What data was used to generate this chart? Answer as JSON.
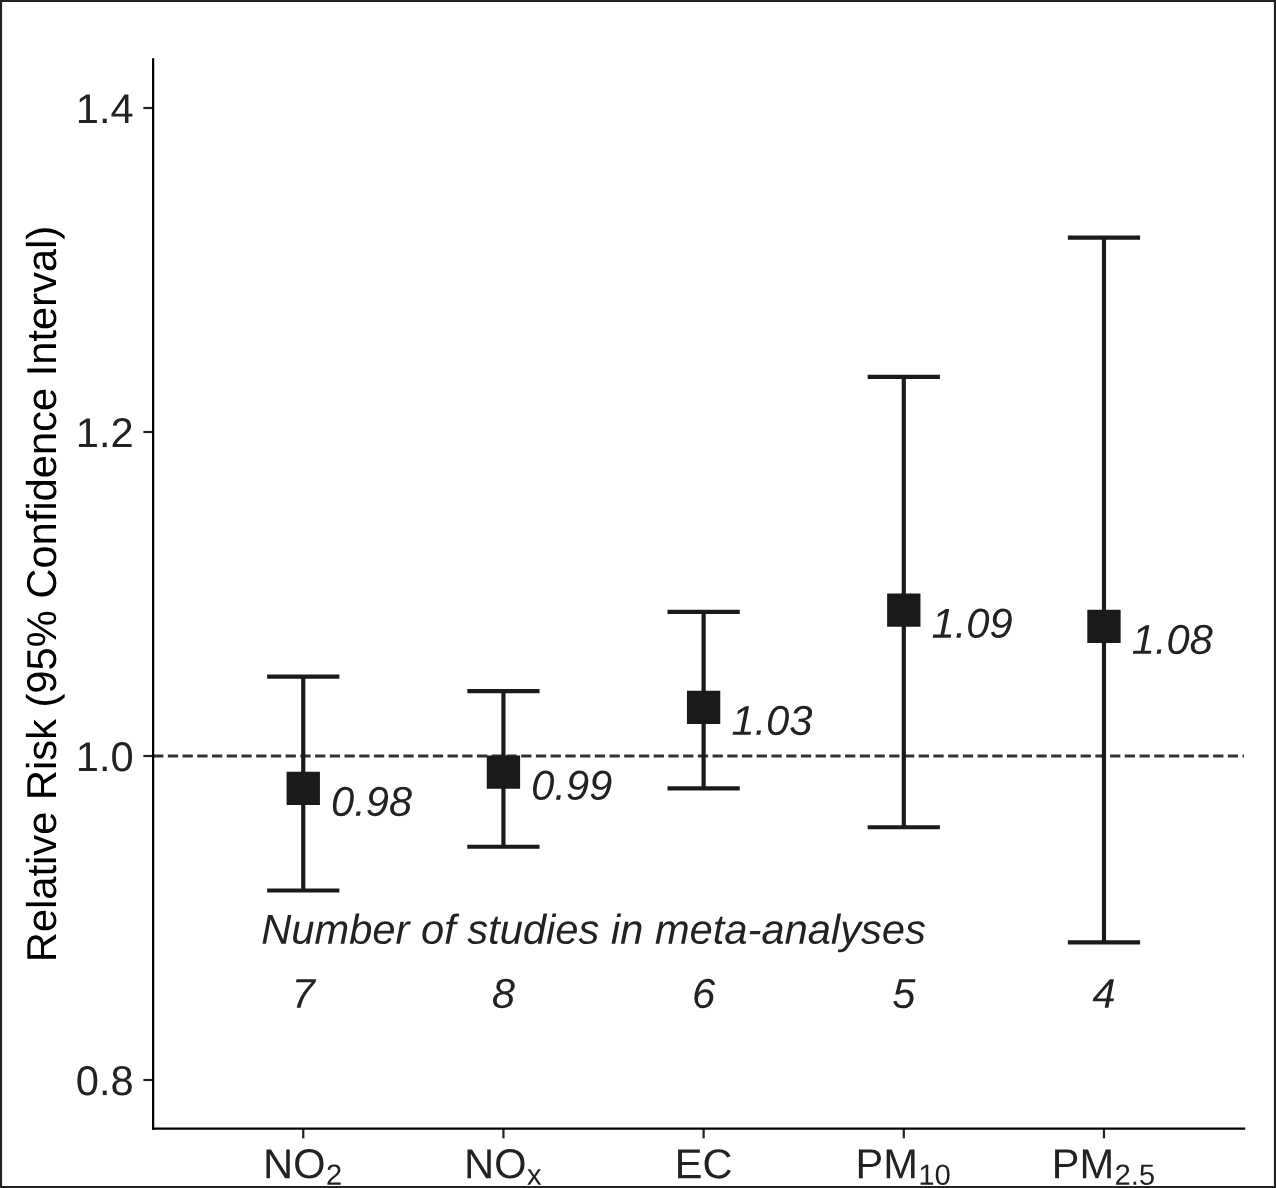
{
  "chart_data": {
    "type": "scatter",
    "ylabel": "Relative Risk (95% Confidence Interval)",
    "categories": [
      "NO$_{2}$",
      "NO$_{x}$",
      "EC",
      "PM$_{10}$",
      "PM$_{2.5}$"
    ],
    "values": [
      0.98,
      0.99,
      1.03,
      1.09,
      1.08
    ],
    "errors": [
      [
        0.917,
        1.049
      ],
      [
        0.944,
        1.04
      ],
      [
        0.98,
        1.089
      ],
      [
        0.956,
        1.234
      ],
      [
        0.885,
        1.32
      ]
    ],
    "color": "#1a1a1a",
    "marker": "square",
    "data_labels": true,
    "ylim": [
      0.77,
      1.43
    ],
    "yticks": [
      0.8,
      {
        "value": 1,
        "label": "1.0"
      },
      1.2,
      1.4
    ],
    "ref_lines": [
      {
        "axis": "y",
        "value": 1,
        "line_style": "dashed",
        "color": "#333333"
      }
    ],
    "annotations": [
      "Number of studies in meta-analyses",
      "7",
      "8",
      "6",
      "5",
      "4"
    ],
    "grid": false,
    "legend": false
  }
}
